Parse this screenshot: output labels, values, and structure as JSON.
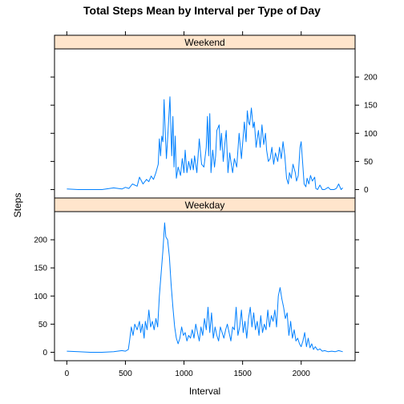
{
  "chart_data": {
    "type": "line",
    "title": "Total Steps Mean by Interval per Type of Day",
    "xlabel": "Interval",
    "ylabel": "Steps",
    "xlim": [
      -105,
      2460
    ],
    "ylim": [
      -15,
      250
    ],
    "x_ticks": [
      0,
      500,
      1000,
      1500,
      2000
    ],
    "y_ticks": [
      0,
      50,
      100,
      150,
      200
    ],
    "grid": false,
    "panels": [
      {
        "strip": "Weekend",
        "y_tick_side": "right",
        "points": [
          [
            0,
            1
          ],
          [
            100,
            0
          ],
          [
            200,
            0
          ],
          [
            300,
            0
          ],
          [
            400,
            3
          ],
          [
            470,
            1
          ],
          [
            500,
            4
          ],
          [
            530,
            2
          ],
          [
            560,
            10
          ],
          [
            600,
            6
          ],
          [
            620,
            22
          ],
          [
            650,
            10
          ],
          [
            680,
            18
          ],
          [
            700,
            14
          ],
          [
            720,
            24
          ],
          [
            740,
            18
          ],
          [
            760,
            30
          ],
          [
            780,
            45
          ],
          [
            790,
            90
          ],
          [
            800,
            60
          ],
          [
            810,
            95
          ],
          [
            820,
            85
          ],
          [
            830,
            160
          ],
          [
            840,
            100
          ],
          [
            850,
            55
          ],
          [
            860,
            90
          ],
          [
            880,
            165
          ],
          [
            895,
            60
          ],
          [
            905,
            130
          ],
          [
            915,
            40
          ],
          [
            925,
            95
          ],
          [
            935,
            20
          ],
          [
            950,
            40
          ],
          [
            970,
            25
          ],
          [
            985,
            55
          ],
          [
            1000,
            30
          ],
          [
            1010,
            70
          ],
          [
            1025,
            30
          ],
          [
            1040,
            50
          ],
          [
            1055,
            35
          ],
          [
            1065,
            55
          ],
          [
            1080,
            35
          ],
          [
            1090,
            60
          ],
          [
            1110,
            30
          ],
          [
            1130,
            90
          ],
          [
            1150,
            45
          ],
          [
            1170,
            40
          ],
          [
            1190,
            75
          ],
          [
            1200,
            130
          ],
          [
            1210,
            60
          ],
          [
            1220,
            135
          ],
          [
            1230,
            30
          ],
          [
            1245,
            70
          ],
          [
            1260,
            40
          ],
          [
            1270,
            60
          ],
          [
            1280,
            105
          ],
          [
            1300,
            115
          ],
          [
            1310,
            70
          ],
          [
            1320,
            100
          ],
          [
            1335,
            50
          ],
          [
            1350,
            85
          ],
          [
            1360,
            105
          ],
          [
            1375,
            30
          ],
          [
            1390,
            65
          ],
          [
            1400,
            50
          ],
          [
            1415,
            30
          ],
          [
            1430,
            55
          ],
          [
            1450,
            40
          ],
          [
            1470,
            100
          ],
          [
            1490,
            55
          ],
          [
            1500,
            80
          ],
          [
            1515,
            120
          ],
          [
            1530,
            85
          ],
          [
            1540,
            140
          ],
          [
            1550,
            120
          ],
          [
            1560,
            115
          ],
          [
            1575,
            145
          ],
          [
            1590,
            110
          ],
          [
            1600,
            120
          ],
          [
            1615,
            75
          ],
          [
            1635,
            105
          ],
          [
            1650,
            75
          ],
          [
            1665,
            115
          ],
          [
            1680,
            80
          ],
          [
            1695,
            100
          ],
          [
            1705,
            70
          ],
          [
            1720,
            50
          ],
          [
            1735,
            55
          ],
          [
            1750,
            75
          ],
          [
            1765,
            45
          ],
          [
            1780,
            65
          ],
          [
            1800,
            50
          ],
          [
            1815,
            75
          ],
          [
            1830,
            55
          ],
          [
            1845,
            85
          ],
          [
            1860,
            60
          ],
          [
            1875,
            20
          ],
          [
            1890,
            10
          ],
          [
            1900,
            30
          ],
          [
            1915,
            20
          ],
          [
            1930,
            45
          ],
          [
            1950,
            30
          ],
          [
            1960,
            15
          ],
          [
            1975,
            25
          ],
          [
            1990,
            75
          ],
          [
            2000,
            85
          ],
          [
            2010,
            55
          ],
          [
            2025,
            10
          ],
          [
            2040,
            5
          ],
          [
            2050,
            20
          ],
          [
            2065,
            10
          ],
          [
            2080,
            25
          ],
          [
            2095,
            15
          ],
          [
            2115,
            22
          ],
          [
            2125,
            2
          ],
          [
            2140,
            0
          ],
          [
            2160,
            8
          ],
          [
            2180,
            0
          ],
          [
            2200,
            0
          ],
          [
            2230,
            4
          ],
          [
            2250,
            0
          ],
          [
            2280,
            0
          ],
          [
            2300,
            2
          ],
          [
            2320,
            10
          ],
          [
            2340,
            0
          ],
          [
            2355,
            3
          ]
        ]
      },
      {
        "strip": "Weekday",
        "y_tick_side": "left",
        "points": [
          [
            0,
            2
          ],
          [
            100,
            1
          ],
          [
            200,
            0
          ],
          [
            300,
            0
          ],
          [
            400,
            1
          ],
          [
            470,
            3
          ],
          [
            500,
            2
          ],
          [
            525,
            5
          ],
          [
            535,
            20
          ],
          [
            550,
            45
          ],
          [
            565,
            30
          ],
          [
            580,
            50
          ],
          [
            600,
            40
          ],
          [
            620,
            55
          ],
          [
            630,
            35
          ],
          [
            645,
            50
          ],
          [
            660,
            25
          ],
          [
            670,
            55
          ],
          [
            685,
            40
          ],
          [
            700,
            75
          ],
          [
            715,
            45
          ],
          [
            730,
            55
          ],
          [
            745,
            40
          ],
          [
            760,
            60
          ],
          [
            775,
            45
          ],
          [
            790,
            100
          ],
          [
            805,
            140
          ],
          [
            820,
            180
          ],
          [
            835,
            230
          ],
          [
            845,
            205
          ],
          [
            860,
            200
          ],
          [
            875,
            170
          ],
          [
            890,
            120
          ],
          [
            905,
            80
          ],
          [
            920,
            45
          ],
          [
            935,
            25
          ],
          [
            950,
            15
          ],
          [
            965,
            25
          ],
          [
            980,
            45
          ],
          [
            995,
            30
          ],
          [
            1010,
            35
          ],
          [
            1025,
            20
          ],
          [
            1040,
            30
          ],
          [
            1055,
            25
          ],
          [
            1070,
            40
          ],
          [
            1085,
            25
          ],
          [
            1100,
            50
          ],
          [
            1115,
            35
          ],
          [
            1130,
            20
          ],
          [
            1145,
            45
          ],
          [
            1160,
            30
          ],
          [
            1175,
            60
          ],
          [
            1190,
            40
          ],
          [
            1205,
            80
          ],
          [
            1220,
            35
          ],
          [
            1235,
            70
          ],
          [
            1250,
            25
          ],
          [
            1265,
            45
          ],
          [
            1280,
            30
          ],
          [
            1295,
            20
          ],
          [
            1310,
            45
          ],
          [
            1325,
            35
          ],
          [
            1340,
            25
          ],
          [
            1355,
            40
          ],
          [
            1370,
            50
          ],
          [
            1385,
            35
          ],
          [
            1400,
            20
          ],
          [
            1415,
            45
          ],
          [
            1430,
            40
          ],
          [
            1445,
            80
          ],
          [
            1460,
            30
          ],
          [
            1475,
            45
          ],
          [
            1490,
            75
          ],
          [
            1505,
            35
          ],
          [
            1520,
            55
          ],
          [
            1535,
            25
          ],
          [
            1550,
            60
          ],
          [
            1565,
            80
          ],
          [
            1580,
            45
          ],
          [
            1595,
            70
          ],
          [
            1610,
            40
          ],
          [
            1625,
            55
          ],
          [
            1640,
            30
          ],
          [
            1655,
            65
          ],
          [
            1670,
            35
          ],
          [
            1685,
            50
          ],
          [
            1700,
            40
          ],
          [
            1715,
            75
          ],
          [
            1730,
            45
          ],
          [
            1745,
            65
          ],
          [
            1760,
            55
          ],
          [
            1775,
            75
          ],
          [
            1790,
            45
          ],
          [
            1805,
            100
          ],
          [
            1820,
            115
          ],
          [
            1835,
            95
          ],
          [
            1850,
            80
          ],
          [
            1865,
            60
          ],
          [
            1880,
            70
          ],
          [
            1895,
            30
          ],
          [
            1910,
            55
          ],
          [
            1925,
            25
          ],
          [
            1940,
            40
          ],
          [
            1955,
            20
          ],
          [
            1970,
            25
          ],
          [
            1985,
            15
          ],
          [
            2000,
            10
          ],
          [
            2015,
            20
          ],
          [
            2030,
            35
          ],
          [
            2045,
            10
          ],
          [
            2060,
            25
          ],
          [
            2075,
            8
          ],
          [
            2090,
            15
          ],
          [
            2105,
            5
          ],
          [
            2120,
            10
          ],
          [
            2140,
            4
          ],
          [
            2160,
            6
          ],
          [
            2180,
            2
          ],
          [
            2200,
            3
          ],
          [
            2230,
            1
          ],
          [
            2260,
            2
          ],
          [
            2290,
            1
          ],
          [
            2320,
            3
          ],
          [
            2355,
            1
          ]
        ]
      }
    ]
  }
}
